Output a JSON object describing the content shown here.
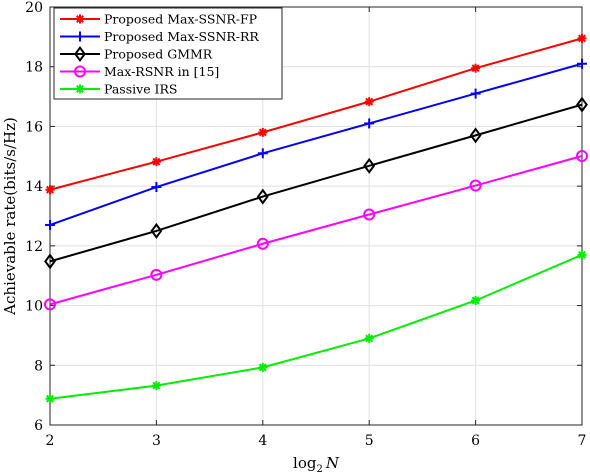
{
  "chart_data": {
    "type": "line",
    "xlabel_base": "log",
    "xlabel_sub": "2",
    "xlabel_var": "N",
    "ylabel": "Achievable rate(bits/s/Hz)",
    "x": [
      2,
      3,
      4,
      5,
      6,
      7
    ],
    "xlim": [
      2,
      7
    ],
    "ylim": [
      6,
      20
    ],
    "xticks": [
      "2",
      "3",
      "4",
      "5",
      "6",
      "7"
    ],
    "yticks": [
      "6",
      "8",
      "10",
      "12",
      "14",
      "16",
      "18",
      "20"
    ],
    "grid": true,
    "legend_position": "top-left",
    "series": [
      {
        "name": "Proposed Max-SSNR-FP",
        "color": "#ff0000",
        "marker": "asterisk",
        "values": [
          13.88,
          14.82,
          15.8,
          16.83,
          17.95,
          18.95
        ]
      },
      {
        "name": "Proposed Max-SSNR-RR",
        "color": "#0000ff",
        "marker": "plus",
        "values": [
          12.7,
          13.97,
          15.1,
          16.1,
          17.1,
          18.1
        ]
      },
      {
        "name": "Proposed GMMR",
        "color": "#000000",
        "marker": "diamond",
        "values": [
          11.48,
          12.5,
          13.65,
          14.68,
          15.7,
          16.73
        ]
      },
      {
        "name": "Max-RSNR in [15]",
        "color": "#ff00ff",
        "marker": "circle",
        "values": [
          10.04,
          11.03,
          12.07,
          13.05,
          14.02,
          15.01
        ]
      },
      {
        "name": "Passive IRS",
        "color": "#00ee00",
        "marker": "asterisk",
        "values": [
          6.88,
          7.32,
          7.93,
          8.9,
          10.17,
          11.7
        ]
      }
    ]
  }
}
